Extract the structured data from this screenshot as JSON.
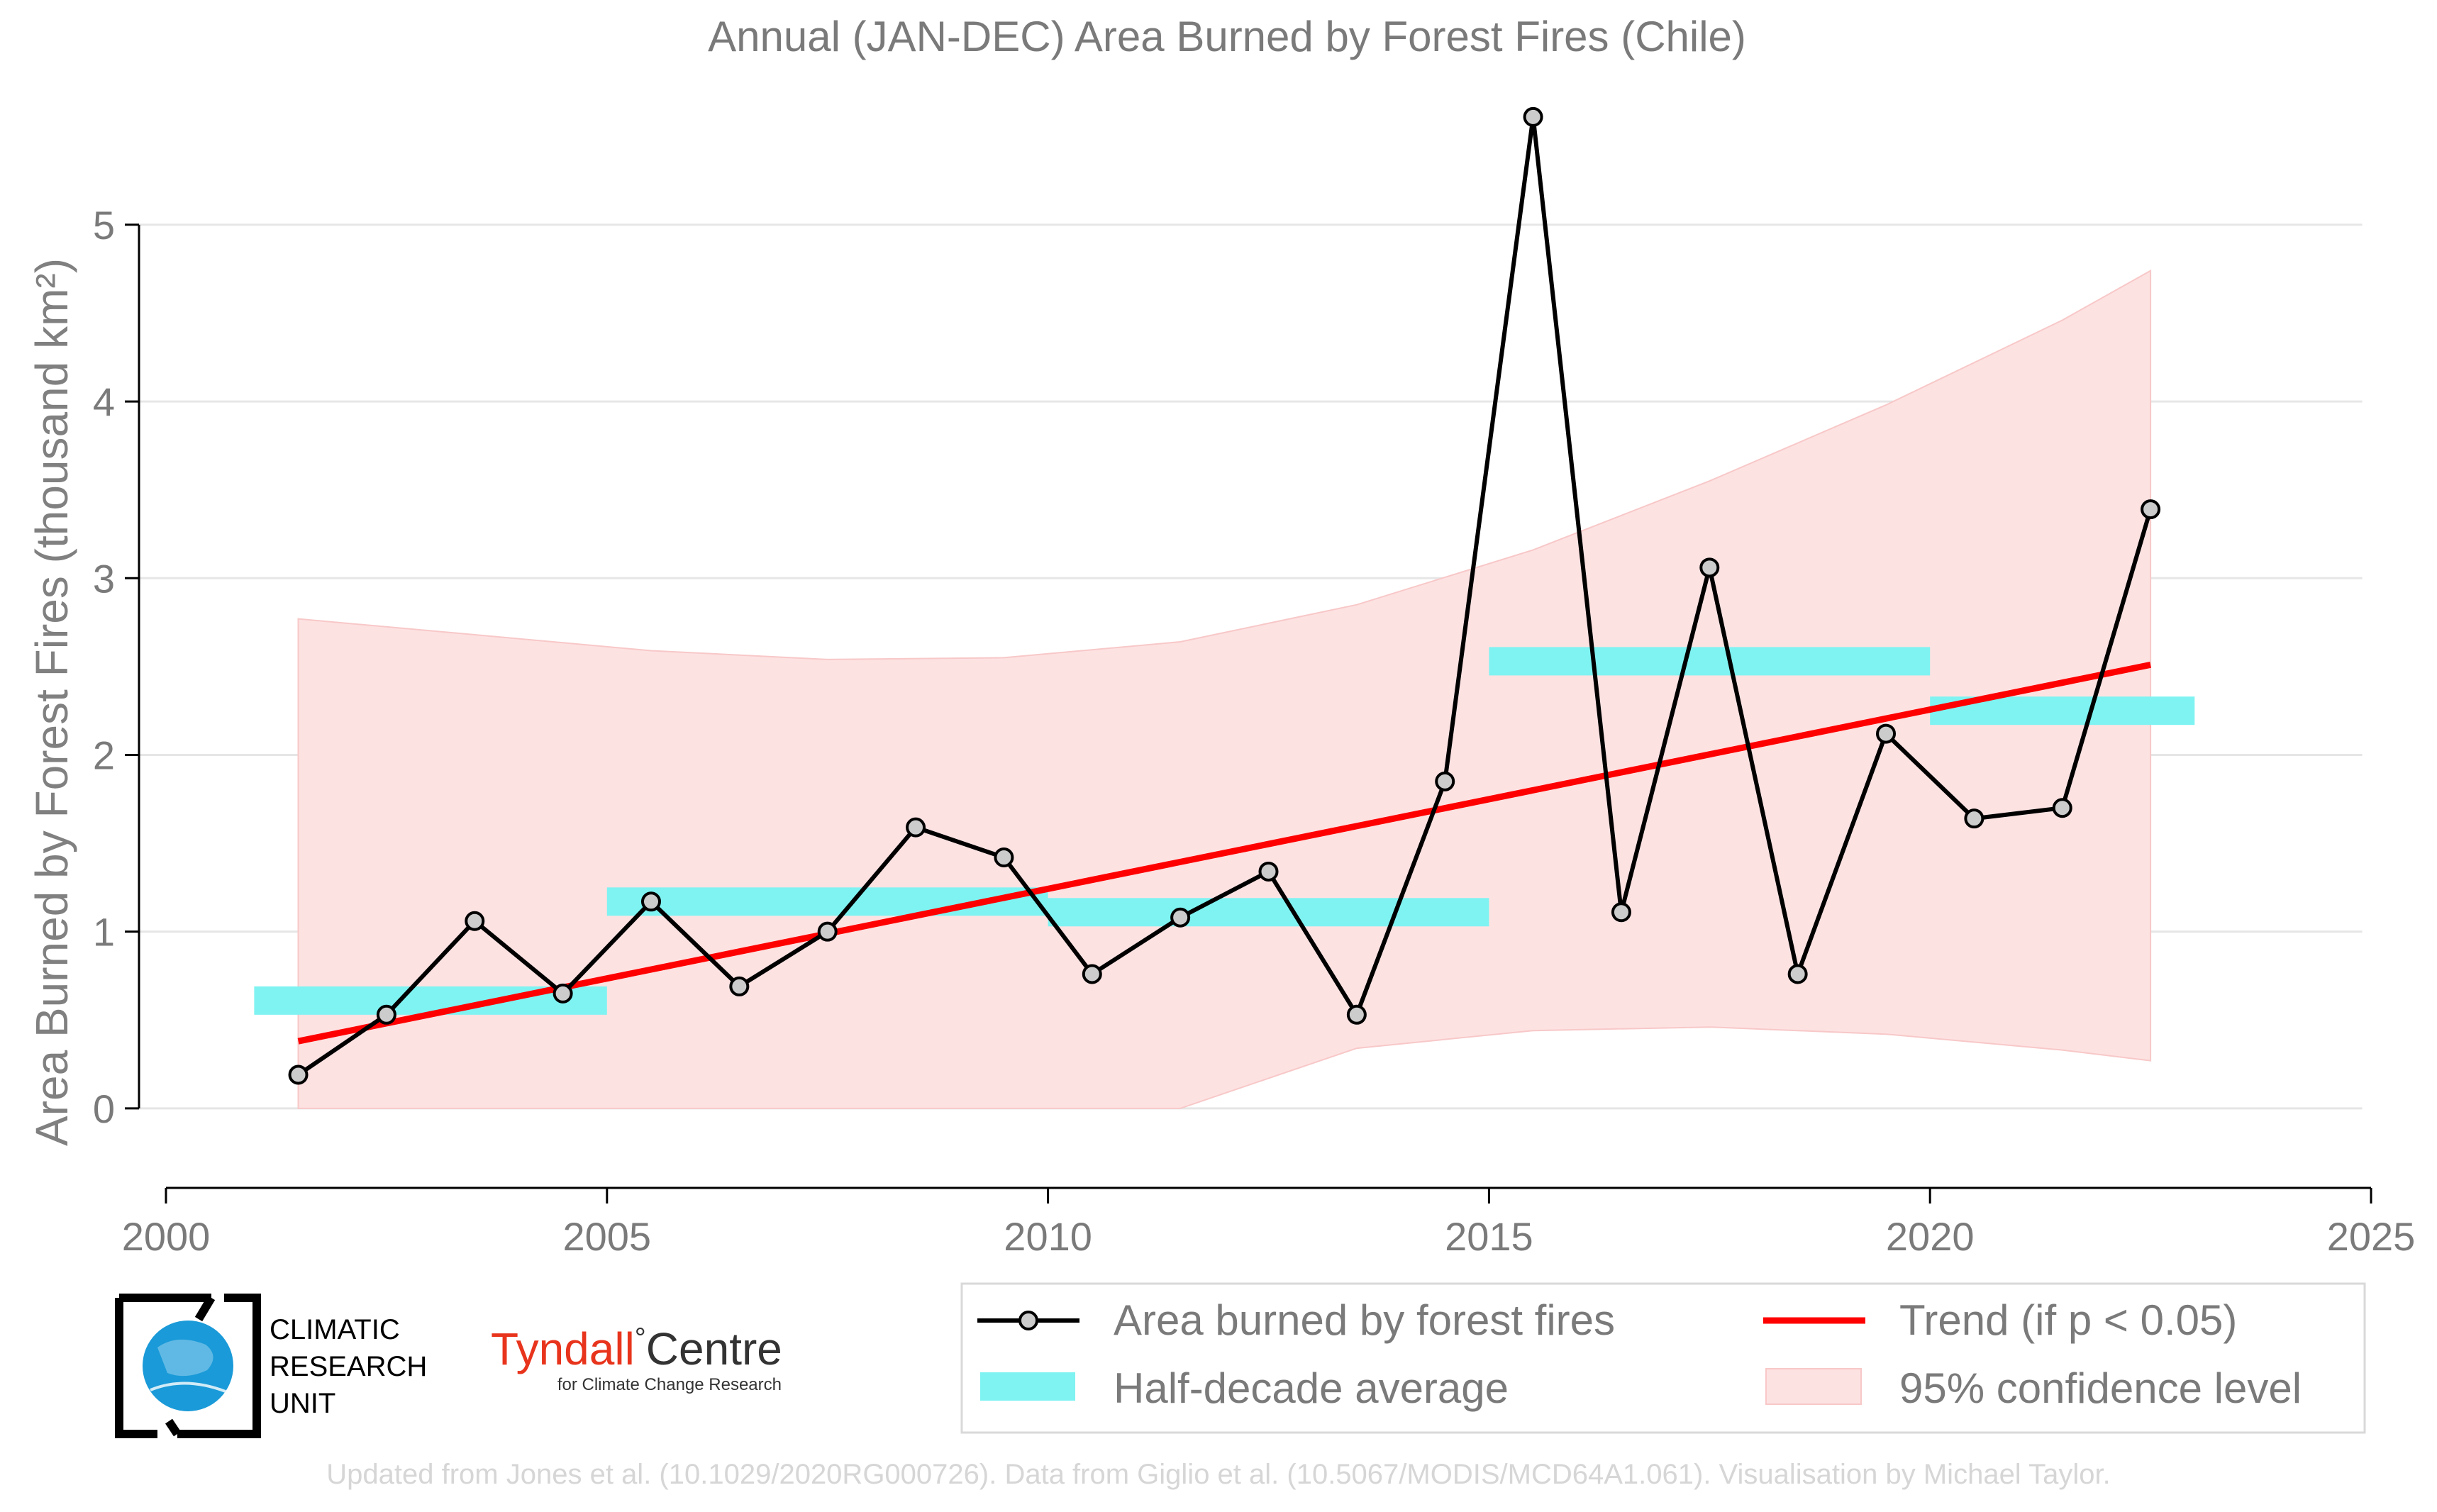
{
  "chart_data": {
    "type": "line",
    "title": "Annual (JAN-DEC) Area Burned by Forest Fires (Chile)",
    "ylabel": "Area Burned by Forest Fires (thousand km²)",
    "xlabel": "",
    "xlim": [
      2000,
      2025
    ],
    "ylim": [
      -0.45,
      5.75
    ],
    "x_ticks": [
      "2000",
      "2005",
      "2010",
      "2015",
      "2020",
      "2025"
    ],
    "y_ticks": [
      "0",
      "1",
      "2",
      "3",
      "4",
      "5"
    ],
    "grid": "horizontal",
    "legend_position": "bottom-right",
    "series": [
      {
        "name": "Area burned by forest fires",
        "color": "#000000",
        "marker_fill": "#cccccc",
        "x": [
          2001.5,
          2002.5,
          2003.5,
          2004.5,
          2005.5,
          2006.5,
          2007.5,
          2008.5,
          2009.5,
          2010.5,
          2011.5,
          2012.5,
          2013.5,
          2014.5,
          2015.5,
          2016.5,
          2017.5,
          2018.5,
          2019.5,
          2020.5,
          2021.5,
          2022.5
        ],
        "values": [
          0.19,
          0.53,
          1.06,
          0.65,
          1.17,
          0.69,
          1.0,
          1.59,
          1.42,
          0.76,
          1.08,
          1.34,
          0.53,
          1.85,
          5.61,
          1.11,
          3.06,
          0.76,
          2.12,
          1.64,
          1.7,
          3.39
        ]
      },
      {
        "name": "Half-decade average",
        "color": "#7ff3f2",
        "segments": [
          {
            "x_start": 2001,
            "x_end": 2005,
            "value": 0.61
          },
          {
            "x_start": 2005,
            "x_end": 2010,
            "value": 1.17
          },
          {
            "x_start": 2010,
            "x_end": 2015,
            "value": 1.11
          },
          {
            "x_start": 2015,
            "x_end": 2020,
            "value": 2.53
          },
          {
            "x_start": 2020,
            "x_end": 2023,
            "value": 2.25
          }
        ]
      },
      {
        "name": "Trend (if p < 0.05)",
        "color": "#ff0000",
        "x": [
          2001.5,
          2022.5
        ],
        "values": [
          0.38,
          2.51
        ]
      },
      {
        "name": "95% confidence level",
        "color": "#fde2e2",
        "x": [
          2001.5,
          2003.5,
          2005.5,
          2007.5,
          2009.5,
          2011.5,
          2013.5,
          2015.5,
          2017.5,
          2019.5,
          2021.5,
          2022.5
        ],
        "upper": [
          2.77,
          2.68,
          2.59,
          2.54,
          2.55,
          2.64,
          2.85,
          3.16,
          3.55,
          3.98,
          4.46,
          4.74
        ],
        "lower": [
          0.0,
          0.0,
          0.0,
          0.0,
          0.0,
          0.0,
          0.34,
          0.44,
          0.46,
          0.42,
          0.33,
          0.27
        ]
      }
    ]
  },
  "legend": {
    "line_label": "Area burned by forest fires",
    "trend_label": "Trend (if p < 0.05)",
    "halfdecade_label": "Half-decade average",
    "ci_label": "95% confidence level"
  },
  "logos": {
    "cru_line1": "CLIMATIC",
    "cru_line2": "RESEARCH",
    "cru_line3": "UNIT",
    "tyndall_name": "Tyndall",
    "tyndall_centre": "Centre",
    "tyndall_sub": "for Climate Change Research"
  },
  "footer": {
    "credit": "Updated from Jones et al. (10.1029/2020RG000726). Data from Giglio et al. (10.5067/MODIS/MCD64A1.061). Visualisation by Michael Taylor."
  }
}
